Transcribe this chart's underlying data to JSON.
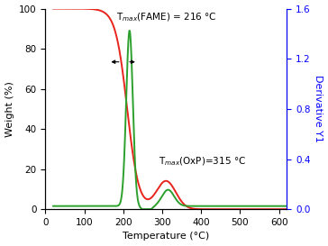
{
  "xlabel": "Temperature (°C)",
  "ylabel_left": "Weight (%)",
  "ylabel_right": "Derivative Y1",
  "xlim": [
    0,
    620
  ],
  "ylim_left": [
    0,
    100
  ],
  "ylim_right": [
    0,
    1.6
  ],
  "xticks": [
    0,
    100,
    200,
    300,
    400,
    500,
    600
  ],
  "yticks_left": [
    0,
    20,
    40,
    60,
    80,
    100
  ],
  "yticks_right": [
    0.0,
    0.4,
    0.8,
    1.2,
    1.6
  ],
  "tg_color": "#e8241c",
  "dtg_color": "#2ca02c",
  "annotation1_text": "T$_{max}$(FAME) = 216 °C",
  "annotation2_text": "T$_{max}$(OxP)=315 °C",
  "right_label_color": "#0000ff",
  "background_color": "#ffffff",
  "figsize": [
    3.64,
    2.73
  ],
  "dpi": 100
}
